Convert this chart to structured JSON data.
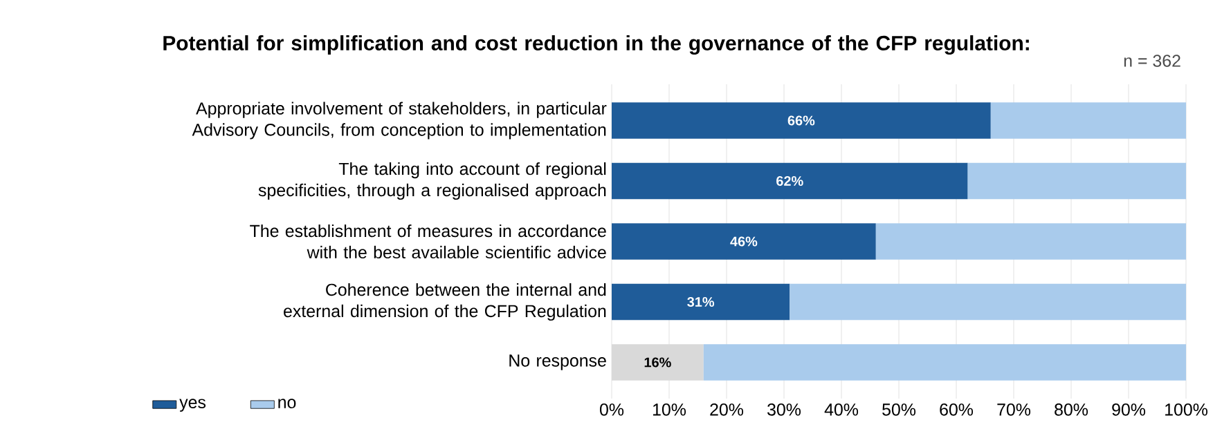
{
  "chart_data": {
    "type": "bar",
    "orientation": "horizontal",
    "stacked": true,
    "title": "Potential for simplification and cost reduction in the governance of the CFP regulation:",
    "categories": [
      "Appropriate involvement of stakeholders, in particular Advisory Councils, from conception to implementation",
      "The taking into account of regional specificities, through a regionalised approach",
      "The establishment of measures in accordance with the best available scientific advice",
      "Coherence between the internal and external dimension of the CFP Regulation",
      "No response"
    ],
    "series": [
      {
        "name": "yes",
        "color": "#1f5c99",
        "colors": [
          "#1f5c99",
          "#1f5c99",
          "#1f5c99",
          "#1f5c99",
          "#d9d9d9"
        ],
        "values": [
          66,
          62,
          46,
          31,
          16
        ],
        "value_labels": [
          "66%",
          "62%",
          "46%",
          "31%",
          "16%"
        ]
      },
      {
        "name": "no",
        "color": "#a9cbec",
        "values": [
          34,
          38,
          54,
          69,
          84
        ]
      }
    ],
    "xlim": [
      0,
      100
    ],
    "xticks": [
      {
        "value": 0,
        "label": "0%"
      },
      {
        "value": 10,
        "label": "10%"
      },
      {
        "value": 20,
        "label": "20%"
      },
      {
        "value": 30,
        "label": "30%"
      },
      {
        "value": 40,
        "label": "40%"
      },
      {
        "value": 50,
        "label": "50%"
      },
      {
        "value": 60,
        "label": "60%"
      },
      {
        "value": 70,
        "label": "70%"
      },
      {
        "value": 80,
        "label": "80%"
      },
      {
        "value": 90,
        "label": "90%"
      },
      {
        "value": 100,
        "label": "100%"
      }
    ],
    "grid": "x",
    "legend": "bottom left",
    "annotations": [
      "n = 362"
    ]
  }
}
